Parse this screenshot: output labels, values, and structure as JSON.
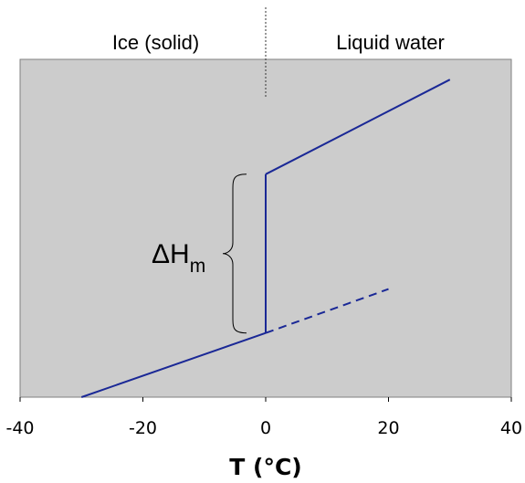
{
  "chart_data": {
    "type": "line",
    "xlabel": "T (°C)",
    "ylabel": "",
    "xlim": [
      -40,
      40
    ],
    "ylim": [
      0,
      100
    ],
    "x_ticks": [
      "-40",
      "-20",
      "0",
      "20",
      "40"
    ],
    "grid": false,
    "background": "#cccccc",
    "line_color": "#1a2896",
    "region_labels": [
      "Ice (solid)",
      "Liquid water"
    ],
    "divider_x": 0,
    "series": [
      {
        "style": "solid",
        "points": [
          [
            -30,
            0
          ],
          [
            0,
            19
          ]
        ]
      },
      {
        "style": "solid",
        "points": [
          [
            0,
            19
          ],
          [
            0,
            66
          ]
        ]
      },
      {
        "style": "solid",
        "points": [
          [
            0,
            66
          ],
          [
            30,
            94
          ]
        ]
      },
      {
        "style": "dashed",
        "points": [
          [
            0,
            19
          ],
          [
            20,
            32
          ]
        ]
      }
    ],
    "annotation": {
      "symbol": "ΔH",
      "subscript": "m",
      "from_y": 19,
      "to_y": 66
    }
  }
}
